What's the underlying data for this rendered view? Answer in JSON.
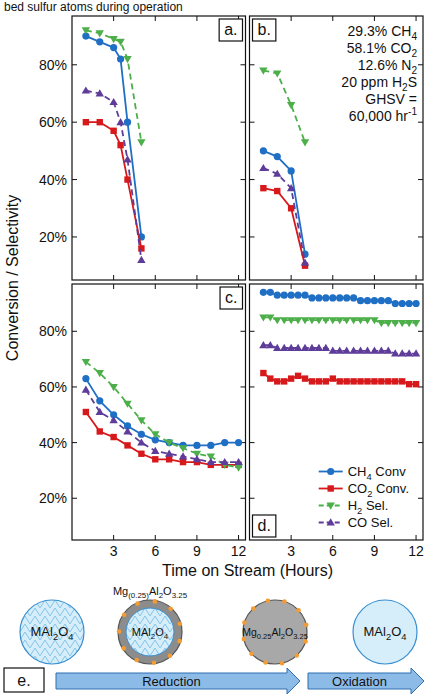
{
  "header_text": "bed sulfur atoms during operation",
  "axis_titles": {
    "ylabel": "Conversion / Selectivity",
    "xlabel": "Time on Stream (Hours)"
  },
  "chart_data": [
    {
      "type": "line",
      "panel_label": "a.",
      "tick_labels": "y",
      "x": [
        1,
        2,
        3,
        3.5,
        4,
        5
      ],
      "xlim": [
        0,
        12.5
      ],
      "ylim": [
        5,
        97
      ],
      "xticks": [
        3,
        6,
        9,
        12
      ],
      "yticks": [
        {
          "value": 20,
          "label": "20%"
        },
        {
          "value": 40,
          "label": "40%"
        },
        {
          "value": 60,
          "label": "60%"
        },
        {
          "value": 80,
          "label": "80%"
        }
      ],
      "series": [
        {
          "name": "CH4 Conv",
          "color": "#1f6fc5",
          "marker": "circle",
          "line_style": "solid",
          "values": [
            90,
            88,
            86,
            82,
            60,
            20
          ]
        },
        {
          "name": "CO2 Conv.",
          "color": "#d7191c",
          "marker": "square",
          "line_style": "solid",
          "values": [
            60,
            60,
            57,
            52,
            40,
            16
          ]
        },
        {
          "name": "H2 Sel.",
          "color": "#4daf4a",
          "marker": "triangle-down",
          "line_style": "dashed",
          "values": [
            92,
            91,
            89,
            88,
            82,
            53
          ]
        },
        {
          "name": "CO Sel.",
          "color": "#5e3c99",
          "marker": "triangle-up",
          "line_style": "dashed",
          "values": [
            71,
            70,
            67,
            60,
            47,
            12
          ]
        }
      ]
    },
    {
      "type": "line",
      "panel_label": "b.",
      "tick_labels": false,
      "annotation": [
        "29.3% CH4",
        "58.1% CO2",
        "12.6% N2",
        "20 ppm H2S",
        "GHSV =",
        "60,000 hr-1"
      ],
      "x": [
        1,
        2,
        3,
        4
      ],
      "xlim": [
        0,
        12.5
      ],
      "ylim": [
        5,
        97
      ],
      "xticks": [
        3,
        6,
        9,
        12
      ],
      "yticks": [
        {
          "value": 20,
          "label": "20%"
        },
        {
          "value": 40,
          "label": "40%"
        },
        {
          "value": 60,
          "label": "60%"
        },
        {
          "value": 80,
          "label": "80%"
        }
      ],
      "series": [
        {
          "name": "CH4 Conv",
          "color": "#1f6fc5",
          "marker": "circle",
          "line_style": "solid",
          "values": [
            50,
            48,
            43,
            14
          ]
        },
        {
          "name": "CO2 Conv.",
          "color": "#d7191c",
          "marker": "square",
          "line_style": "solid",
          "values": [
            37,
            36,
            30,
            10
          ]
        },
        {
          "name": "H2 Sel.",
          "color": "#4daf4a",
          "marker": "triangle-down",
          "line_style": "dashed",
          "values": [
            78,
            77,
            66,
            53
          ]
        },
        {
          "name": "CO Sel.",
          "color": "#5e3c99",
          "marker": "triangle-up",
          "line_style": "dashed",
          "values": [
            44,
            42,
            37,
            11
          ]
        }
      ]
    },
    {
      "type": "line",
      "panel_label": "c.",
      "tick_labels": true,
      "x": [
        1,
        2,
        3,
        4,
        5,
        6,
        7,
        8,
        9,
        10,
        11,
        12
      ],
      "xlim": [
        0,
        12.5
      ],
      "ylim": [
        5,
        97
      ],
      "xticks": [
        3,
        6,
        9,
        12
      ],
      "yticks": [
        {
          "value": 20,
          "label": "20%"
        },
        {
          "value": 40,
          "label": "40%"
        },
        {
          "value": 60,
          "label": "60%"
        },
        {
          "value": 80,
          "label": "80%"
        }
      ],
      "series": [
        {
          "name": "CH4 Conv",
          "color": "#1f6fc5",
          "marker": "circle",
          "line_style": "solid",
          "values": [
            63,
            55,
            50,
            46,
            43,
            41,
            40,
            39,
            39,
            39,
            40,
            40
          ]
        },
        {
          "name": "CO2 Conv.",
          "color": "#d7191c",
          "marker": "square",
          "line_style": "solid",
          "values": [
            51,
            44,
            42,
            39,
            36,
            34,
            34,
            33,
            33,
            32,
            32,
            32
          ]
        },
        {
          "name": "H2 Sel.",
          "color": "#4daf4a",
          "marker": "triangle-down",
          "line_style": "dashed",
          "values": [
            69,
            65,
            60,
            54,
            48,
            43,
            40,
            38,
            36,
            35,
            32,
            31
          ]
        },
        {
          "name": "CO Sel.",
          "color": "#5e3c99",
          "marker": "triangle-up",
          "line_style": "dashed",
          "values": [
            59,
            51,
            48,
            44,
            40,
            37,
            36,
            35,
            34,
            33,
            33,
            33
          ]
        }
      ]
    },
    {
      "type": "line",
      "panel_label": "d.",
      "tick_labels": "x",
      "legend": "lower-right",
      "x": [
        1,
        1.5,
        2,
        2.5,
        3,
        3.5,
        4,
        4.5,
        5,
        5.5,
        6,
        6.5,
        7,
        7.5,
        8,
        8.5,
        9,
        9.5,
        10,
        10.5,
        11,
        11.5,
        12
      ],
      "xlim": [
        0,
        12.5
      ],
      "ylim": [
        5,
        97
      ],
      "xticks": [
        3,
        6,
        9,
        12
      ],
      "yticks": [
        {
          "value": 20,
          "label": "20%"
        },
        {
          "value": 40,
          "label": "40%"
        },
        {
          "value": 60,
          "label": "60%"
        },
        {
          "value": 80,
          "label": "80%"
        }
      ],
      "series": [
        {
          "name": "CH4 Conv",
          "color": "#1f6fc5",
          "marker": "circle",
          "line_style": "solid",
          "values": [
            94,
            94,
            93,
            93,
            93,
            93,
            93,
            92,
            92,
            92,
            92,
            92,
            92,
            92,
            91,
            91,
            91,
            91,
            91,
            90,
            90,
            90,
            90
          ]
        },
        {
          "name": "CO2 Conv.",
          "color": "#d7191c",
          "marker": "square",
          "line_style": "solid",
          "values": [
            65,
            63,
            62,
            62,
            63,
            64,
            63,
            62,
            62,
            62,
            63,
            62,
            62,
            62,
            62,
            62,
            62,
            62,
            62,
            62,
            62,
            61,
            61
          ]
        },
        {
          "name": "H2 Sel.",
          "color": "#4daf4a",
          "marker": "triangle-down",
          "line_style": "dashed",
          "values": [
            85,
            85,
            84,
            84,
            84,
            84,
            84,
            84,
            84,
            84,
            84,
            84,
            84,
            84,
            84,
            84,
            84,
            83,
            83,
            83,
            83,
            83,
            83
          ]
        },
        {
          "name": "CO Sel.",
          "color": "#5e3c99",
          "marker": "triangle-up",
          "line_style": "dashed",
          "values": [
            75,
            75,
            74,
            74,
            74,
            74,
            74,
            74,
            74,
            74,
            73,
            73,
            73,
            73,
            73,
            73,
            73,
            73,
            73,
            72,
            72,
            72,
            72
          ]
        }
      ]
    }
  ],
  "diagram": {
    "label": "e.",
    "particles": [
      {
        "core": "MAl2O4"
      },
      {
        "core": "MAl2O4",
        "shell": "Mg(0.25)Al2O3.25"
      },
      {
        "core": "Mg0.25Al2O3.25"
      },
      {
        "core": "MAl2O4"
      }
    ],
    "arrows": [
      "Reduction",
      "Oxidation"
    ]
  }
}
